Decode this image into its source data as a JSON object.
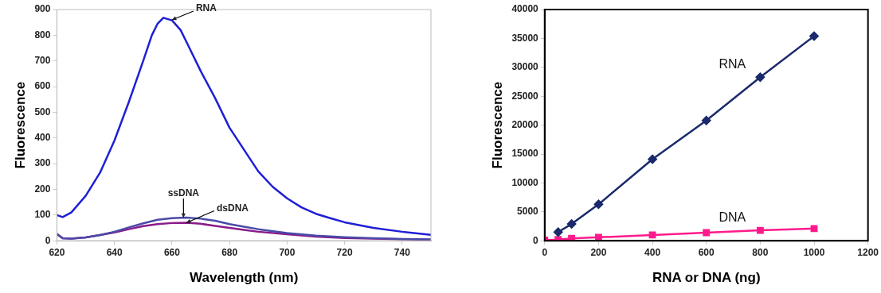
{
  "chart_data": [
    {
      "type": "line",
      "xlabel": "Wavelength (nm)",
      "ylabel": "Fluorescence",
      "xlim": [
        620,
        750
      ],
      "xticks": [
        620,
        640,
        660,
        680,
        700,
        720,
        740
      ],
      "ylim": [
        0,
        900
      ],
      "yticks": [
        0,
        100,
        200,
        300,
        400,
        500,
        600,
        700,
        800,
        900
      ],
      "grid": false,
      "legend": false,
      "marker": "none",
      "line_style": "solid",
      "series": [
        {
          "color": "#1f1fd6",
          "x": [
            620,
            622,
            625,
            630,
            635,
            640,
            645,
            650,
            653,
            655,
            657,
            660,
            663,
            665,
            670,
            675,
            680,
            685,
            690,
            695,
            700,
            705,
            710,
            715,
            720,
            730,
            740,
            750
          ],
          "values": [
            100,
            92,
            110,
            175,
            265,
            390,
            540,
            700,
            800,
            845,
            868,
            858,
            820,
            775,
            660,
            555,
            440,
            355,
            270,
            210,
            165,
            130,
            105,
            88,
            72,
            50,
            35,
            23
          ]
        },
        {
          "color": "#4a4aa8",
          "x": [
            620,
            622,
            625,
            630,
            635,
            640,
            645,
            650,
            655,
            660,
            665,
            670,
            675,
            680,
            685,
            690,
            700,
            710,
            720,
            730,
            740,
            750
          ],
          "values": [
            25,
            10,
            8,
            13,
            22,
            35,
            52,
            68,
            82,
            88,
            90,
            86,
            78,
            65,
            55,
            45,
            30,
            20,
            14,
            10,
            7,
            5
          ]
        },
        {
          "color": "#8a1a8a",
          "x": [
            620,
            622,
            625,
            630,
            635,
            640,
            645,
            650,
            655,
            660,
            665,
            670,
            675,
            680,
            685,
            690,
            700,
            710,
            720,
            730,
            740,
            750
          ],
          "values": [
            27,
            10,
            8,
            13,
            22,
            32,
            45,
            57,
            65,
            69,
            70,
            66,
            58,
            50,
            42,
            35,
            25,
            16,
            11,
            8,
            6,
            4
          ]
        }
      ],
      "annotations": [
        {
          "text": "RNA",
          "x": 660,
          "y": 860
        },
        {
          "text": "ssDNA",
          "x": 664,
          "y": 90
        },
        {
          "text": "dsDNA",
          "x": 665,
          "y": 70
        }
      ]
    },
    {
      "type": "line",
      "xlabel": "RNA or DNA (ng)",
      "ylabel": "Fluorescence",
      "xlim": [
        0,
        1200
      ],
      "xticks": [
        0,
        200,
        400,
        600,
        800,
        1000,
        1200
      ],
      "ylim": [
        0,
        40000
      ],
      "yticks": [
        0,
        5000,
        10000,
        15000,
        20000,
        25000,
        30000,
        35000,
        40000
      ],
      "grid": false,
      "legend": false,
      "line_style": "solid",
      "series": [
        {
          "name": "RNA",
          "color": "#1a2a6c",
          "marker": "diamond",
          "x": [
            50,
            100,
            200,
            400,
            600,
            800,
            1000
          ],
          "values": [
            1500,
            2900,
            6300,
            14100,
            20800,
            28300,
            35400
          ]
        },
        {
          "name": "DNA",
          "color": "#ff1a8c",
          "marker": "square",
          "x": [
            0,
            50,
            100,
            200,
            400,
            600,
            800,
            1000
          ],
          "values": [
            100,
            200,
            400,
            600,
            1000,
            1400,
            1800,
            2100
          ]
        }
      ]
    }
  ]
}
